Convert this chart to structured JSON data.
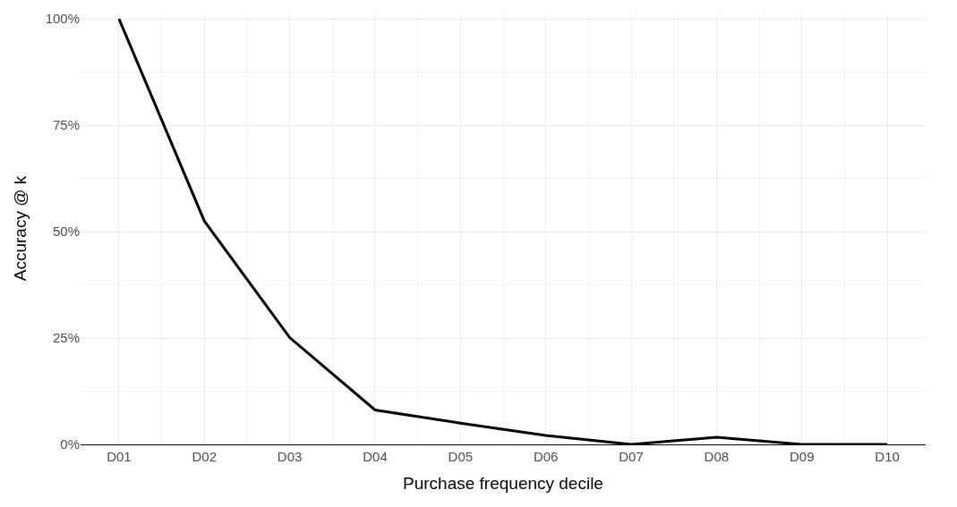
{
  "chart_data": {
    "type": "line",
    "xlabel": "Purchase frequency decile",
    "ylabel": "Accuracy @ k",
    "categories": [
      "D01",
      "D02",
      "D03",
      "D04",
      "D05",
      "D06",
      "D07",
      "D08",
      "D09",
      "D10"
    ],
    "series": [
      {
        "color": "#000000",
        "values": [
          100,
          52.5,
          25.1,
          8.1,
          5.0,
          2.1,
          0,
          1.7,
          0,
          0
        ]
      }
    ],
    "ylim": [
      0,
      101.5
    ],
    "yticks": [
      {
        "value": 0,
        "label": "0%"
      },
      {
        "value": 25,
        "label": "25%"
      },
      {
        "value": 50,
        "label": "50%"
      },
      {
        "value": 75,
        "label": "75%"
      },
      {
        "value": 100,
        "label": "100%"
      }
    ],
    "grid": true,
    "marker": "none",
    "line_style": "solid"
  }
}
